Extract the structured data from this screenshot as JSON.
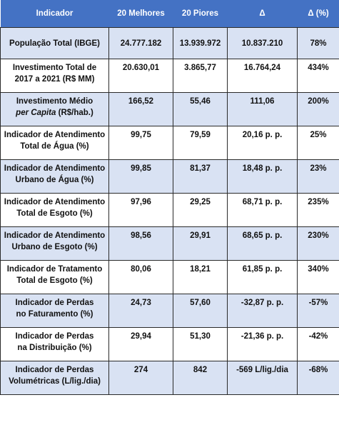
{
  "table": {
    "headers": [
      "Indicador",
      "20 Melhores",
      "20 Piores",
      "Δ",
      "Δ (%)"
    ],
    "rows": [
      {
        "label_l1": "População Total (IBGE)",
        "label_l2": "",
        "label_l2_italic": "",
        "label_l2_rest": "",
        "melhores": "24.777.182",
        "piores": "13.939.972",
        "delta": "10.837.210",
        "delta_pct": "78%"
      },
      {
        "label_l1": "Investimento Total de",
        "label_l2": "2017 a 2021 (R$ MM)",
        "label_l2_italic": "",
        "label_l2_rest": "",
        "melhores": "20.630,01",
        "piores": "3.865,77",
        "delta": "16.764,24",
        "delta_pct": "434%"
      },
      {
        "label_l1": "Investimento Médio",
        "label_l2": "",
        "label_l2_italic": "per Capita",
        "label_l2_rest": " (R$/hab.)",
        "melhores": "166,52",
        "piores": "55,46",
        "delta": "111,06",
        "delta_pct": "200%"
      },
      {
        "label_l1": "Indicador de Atendimento",
        "label_l2": "Total de Água (%)",
        "label_l2_italic": "",
        "label_l2_rest": "",
        "melhores": "99,75",
        "piores": "79,59",
        "delta": "20,16 p. p.",
        "delta_pct": "25%"
      },
      {
        "label_l1": "Indicador de Atendimento",
        "label_l2": "Urbano de Água (%)",
        "label_l2_italic": "",
        "label_l2_rest": "",
        "melhores": "99,85",
        "piores": "81,37",
        "delta": "18,48 p. p.",
        "delta_pct": "23%"
      },
      {
        "label_l1": "Indicador de Atendimento",
        "label_l2": "Total de Esgoto (%)",
        "label_l2_italic": "",
        "label_l2_rest": "",
        "melhores": "97,96",
        "piores": "29,25",
        "delta": "68,71 p. p.",
        "delta_pct": "235%"
      },
      {
        "label_l1": "Indicador de Atendimento",
        "label_l2": "Urbano de Esgoto (%)",
        "label_l2_italic": "",
        "label_l2_rest": "",
        "melhores": "98,56",
        "piores": "29,91",
        "delta": "68,65 p. p.",
        "delta_pct": "230%"
      },
      {
        "label_l1": "Indicador de Tratamento",
        "label_l2": "Total de Esgoto (%)",
        "label_l2_italic": "",
        "label_l2_rest": "",
        "melhores": "80,06",
        "piores": "18,21",
        "delta": "61,85 p. p.",
        "delta_pct": "340%"
      },
      {
        "label_l1": "Indicador de Perdas",
        "label_l2": "no Faturamento (%)",
        "label_l2_italic": "",
        "label_l2_rest": "",
        "melhores": "24,73",
        "piores": "57,60",
        "delta": "-32,87 p. p.",
        "delta_pct": "-57%"
      },
      {
        "label_l1": "Indicador de Perdas",
        "label_l2": "na Distribuição (%)",
        "label_l2_italic": "",
        "label_l2_rest": "",
        "melhores": "29,94",
        "piores": "51,30",
        "delta": "-21,36 p. p.",
        "delta_pct": "-42%"
      },
      {
        "label_l1": "Indicador de Perdas",
        "label_l2": "Volumétricas (L/lig./dia)",
        "label_l2_italic": "",
        "label_l2_rest": "",
        "melhores": "274",
        "piores": "842",
        "delta": "-569 L/lig./dia",
        "delta_pct": "-68%"
      }
    ]
  }
}
